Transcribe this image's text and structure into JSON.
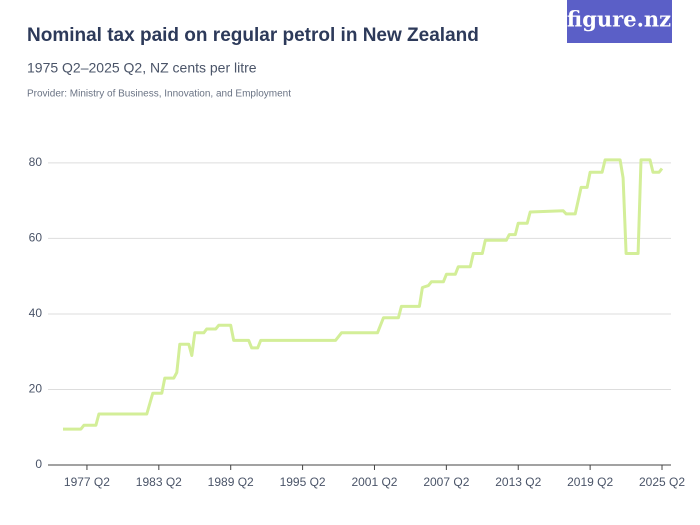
{
  "logo": "figure.nz",
  "chart_data": {
    "type": "line",
    "title": "Nominal tax paid on regular petrol in New Zealand",
    "subtitle": "1975 Q2–2025 Q2, NZ cents per litre",
    "provider": "Provider: Ministry of Business, Innovation, and Employment",
    "xlim": [
      1974,
      2026
    ],
    "xticks": [
      {
        "value": 1977.25,
        "label": "1977 Q2"
      },
      {
        "value": 1983.25,
        "label": "1983 Q2"
      },
      {
        "value": 1989.25,
        "label": "1989 Q2"
      },
      {
        "value": 1995.25,
        "label": "1995 Q2"
      },
      {
        "value": 2001.25,
        "label": "2001 Q2"
      },
      {
        "value": 2007.25,
        "label": "2007 Q2"
      },
      {
        "value": 2013.25,
        "label": "2013 Q2"
      },
      {
        "value": 2019.25,
        "label": "2019 Q2"
      },
      {
        "value": 2025.25,
        "label": "2025 Q2"
      }
    ],
    "ylim": [
      0,
      85
    ],
    "yticks": [
      0,
      20,
      40,
      60,
      80
    ],
    "grid": true,
    "series": [
      {
        "color": "#d3ee98",
        "x": [
          1975.25,
          1976.75,
          1977.0,
          1978.0,
          1978.25,
          1982.25,
          1982.75,
          1983.5,
          1983.75,
          1984.5,
          1984.75,
          1985.0,
          1985.75,
          1986.0,
          1986.25,
          1987.0,
          1987.25,
          1988.0,
          1988.25,
          1989.25,
          1989.5,
          1990.75,
          1991.0,
          1991.5,
          1991.75,
          1998.0,
          1998.5,
          2001.5,
          2002.0,
          2003.25,
          2003.5,
          2005.0,
          2005.25,
          2005.75,
          2006.0,
          2007.0,
          2007.25,
          2008.0,
          2008.25,
          2009.25,
          2009.5,
          2010.25,
          2010.5,
          2012.25,
          2012.5,
          2013.0,
          2013.25,
          2014.0,
          2014.25,
          2017.0,
          2017.25,
          2018.0,
          2018.5,
          2019.0,
          2019.25,
          2020.25,
          2020.5,
          2021.75,
          2022.0,
          2022.25,
          2023.25,
          2023.5,
          2024.25,
          2024.5,
          2025.0,
          2025.25
        ],
        "values": [
          9.5,
          9.5,
          10.5,
          10.5,
          13.5,
          13.5,
          19,
          19,
          23,
          23,
          24.5,
          32,
          32,
          29,
          35,
          35,
          36,
          36,
          37,
          37,
          33,
          33,
          31,
          31,
          33,
          33,
          35,
          35,
          39,
          39,
          42,
          42,
          47,
          47.5,
          48.5,
          48.5,
          50.5,
          50.5,
          52.5,
          52.5,
          56,
          56,
          59.5,
          59.5,
          61,
          61,
          64,
          64,
          67,
          67.3,
          66.5,
          66.5,
          73.5,
          73.5,
          77.5,
          77.5,
          80.8,
          80.8,
          76,
          56,
          56,
          80.8,
          80.8,
          77.5,
          77.5,
          78.5
        ]
      }
    ]
  }
}
